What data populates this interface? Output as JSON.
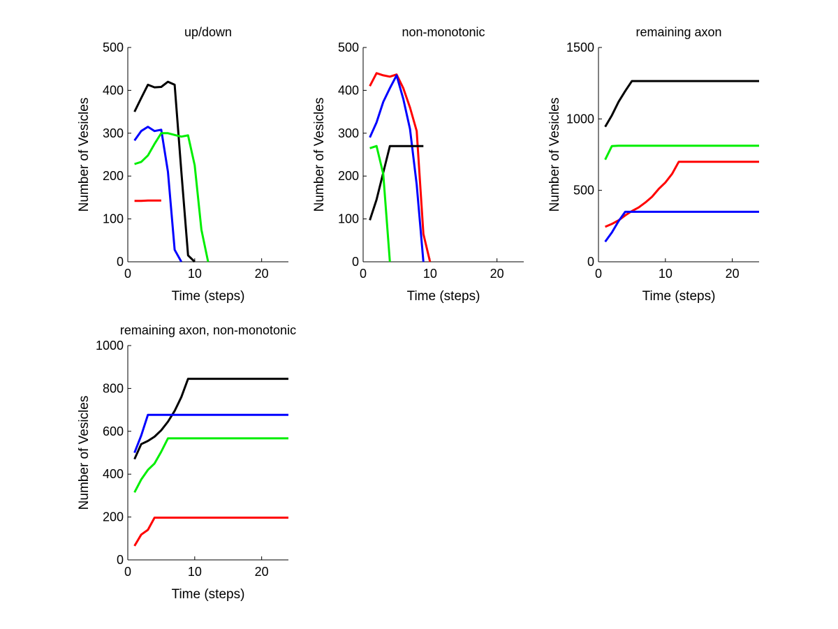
{
  "chart_data": [
    {
      "type": "line",
      "title": "up/down",
      "xlabel": "Time (steps)",
      "ylabel": "Number of Vesicles",
      "xlim": [
        0,
        24
      ],
      "ylim": [
        0,
        500
      ],
      "xticks": [
        0,
        10,
        20
      ],
      "yticks": [
        0,
        100,
        200,
        300,
        400,
        500
      ],
      "series": [
        {
          "name": "black",
          "color": "#000000",
          "x": [
            1,
            2,
            3,
            4,
            5,
            6,
            7,
            8,
            9,
            10
          ],
          "y": [
            350,
            382,
            413,
            407,
            408,
            420,
            413,
            210,
            15,
            0
          ]
        },
        {
          "name": "blue",
          "color": "#0000ff",
          "x": [
            1,
            2,
            3,
            4,
            5,
            6,
            7,
            8
          ],
          "y": [
            283,
            305,
            315,
            305,
            308,
            210,
            28,
            0
          ]
        },
        {
          "name": "green",
          "color": "#00ee00",
          "x": [
            1,
            2,
            3,
            4,
            5,
            6,
            7,
            8,
            9,
            10,
            11,
            12
          ],
          "y": [
            228,
            233,
            248,
            275,
            300,
            300,
            296,
            292,
            295,
            225,
            75,
            0
          ]
        },
        {
          "name": "red",
          "color": "#ff0000",
          "x": [
            1,
            2,
            3,
            4,
            5
          ],
          "y": [
            142,
            142,
            143,
            143,
            143
          ]
        }
      ]
    },
    {
      "type": "line",
      "title": "non-monotonic",
      "xlabel": "Time (steps)",
      "ylabel": "Number of Vesicles",
      "xlim": [
        0,
        24
      ],
      "ylim": [
        0,
        500
      ],
      "xticks": [
        0,
        10,
        20
      ],
      "yticks": [
        0,
        100,
        200,
        300,
        400,
        500
      ],
      "series": [
        {
          "name": "red",
          "color": "#ff0000",
          "x": [
            1,
            2,
            3,
            4,
            5,
            6,
            7,
            8,
            9,
            10
          ],
          "y": [
            410,
            440,
            435,
            432,
            437,
            405,
            360,
            305,
            65,
            0
          ]
        },
        {
          "name": "blue",
          "color": "#0000ff",
          "x": [
            1,
            2,
            3,
            4,
            5,
            6,
            7,
            8,
            9
          ],
          "y": [
            290,
            325,
            373,
            405,
            435,
            380,
            310,
            180,
            0
          ]
        },
        {
          "name": "black",
          "color": "#000000",
          "x": [
            1,
            2,
            3,
            4,
            5,
            6,
            7,
            8,
            9
          ],
          "y": [
            97,
            145,
            208,
            270,
            270,
            270,
            270,
            270,
            270
          ]
        },
        {
          "name": "green",
          "color": "#00ee00",
          "x": [
            1,
            2,
            3,
            4
          ],
          "y": [
            265,
            270,
            205,
            0
          ]
        }
      ]
    },
    {
      "type": "line",
      "title": "remaining axon",
      "xlabel": "Time (steps)",
      "ylabel": "Number of Vesicles",
      "xlim": [
        0,
        24
      ],
      "ylim": [
        0,
        1500
      ],
      "xticks": [
        0,
        10,
        20
      ],
      "yticks": [
        0,
        500,
        1000,
        1500
      ],
      "series": [
        {
          "name": "black",
          "color": "#000000",
          "x": [
            1,
            2,
            3,
            4,
            5,
            24
          ],
          "y": [
            945,
            1025,
            1120,
            1195,
            1265,
            1265
          ]
        },
        {
          "name": "green",
          "color": "#00ee00",
          "x": [
            1,
            2,
            3,
            24
          ],
          "y": [
            715,
            810,
            812,
            812
          ]
        },
        {
          "name": "red",
          "color": "#ff0000",
          "x": [
            1,
            2,
            3,
            4,
            5,
            6,
            7,
            8,
            9,
            10,
            11,
            12,
            24
          ],
          "y": [
            245,
            265,
            290,
            325,
            355,
            380,
            415,
            455,
            510,
            555,
            615,
            700,
            700
          ]
        },
        {
          "name": "blue",
          "color": "#0000ff",
          "x": [
            1,
            2,
            3,
            4,
            5,
            24
          ],
          "y": [
            140,
            205,
            285,
            350,
            350,
            350
          ]
        }
      ]
    },
    {
      "type": "line",
      "title": "remaining axon, non-monotonic",
      "xlabel": "Time (steps)",
      "ylabel": "Number of Vesicles",
      "xlim": [
        0,
        24
      ],
      "ylim": [
        0,
        1000
      ],
      "xticks": [
        0,
        10,
        20
      ],
      "yticks": [
        0,
        200,
        400,
        600,
        800,
        1000
      ],
      "series": [
        {
          "name": "black",
          "color": "#000000",
          "x": [
            1,
            2,
            3,
            4,
            5,
            6,
            7,
            8,
            9,
            24
          ],
          "y": [
            470,
            540,
            555,
            575,
            605,
            645,
            695,
            760,
            845,
            845
          ]
        },
        {
          "name": "blue",
          "color": "#0000ff",
          "x": [
            1,
            2,
            3,
            24
          ],
          "y": [
            500,
            580,
            677,
            677
          ]
        },
        {
          "name": "green",
          "color": "#00ee00",
          "x": [
            1,
            2,
            3,
            4,
            5,
            6,
            24
          ],
          "y": [
            315,
            375,
            420,
            450,
            505,
            567,
            567
          ]
        },
        {
          "name": "red",
          "color": "#ff0000",
          "x": [
            1,
            2,
            3,
            4,
            24
          ],
          "y": [
            65,
            118,
            140,
            197,
            197
          ]
        }
      ]
    }
  ]
}
